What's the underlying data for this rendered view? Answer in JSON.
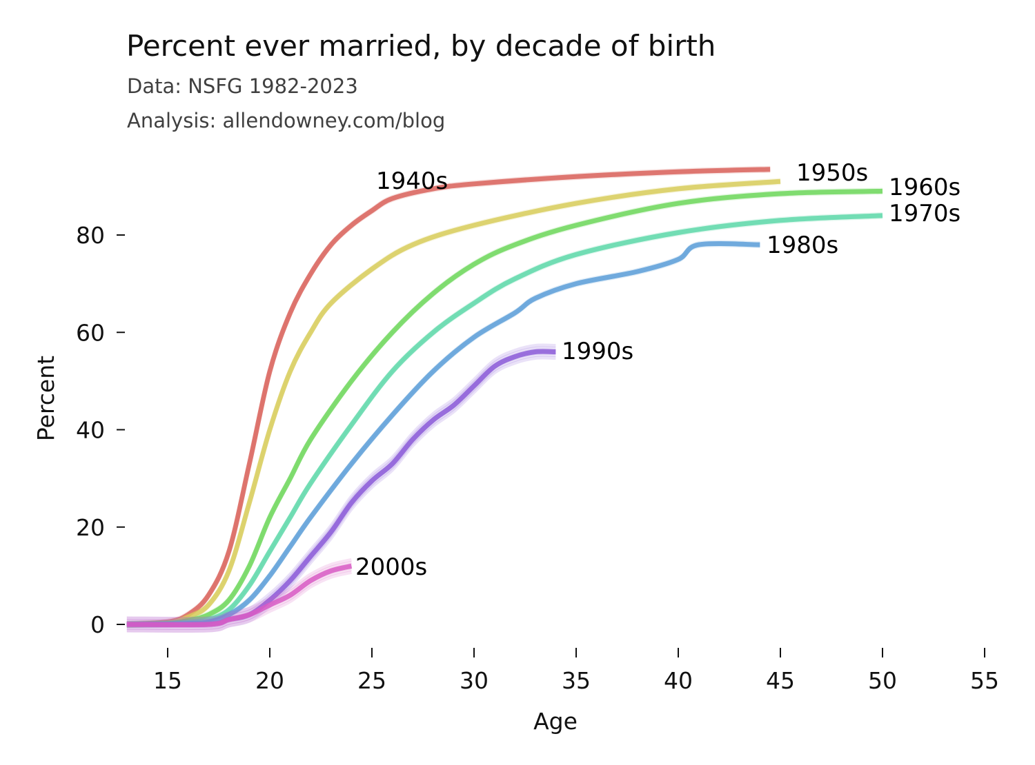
{
  "chart_data": {
    "type": "line",
    "title": "Percent ever married, by decade of birth",
    "subtitle_lines": [
      "Data: NSFG 1982-2023",
      "Analysis: allendowney.com/blog"
    ],
    "xlabel": "Age",
    "ylabel": "Percent",
    "xlim": [
      13,
      56
    ],
    "ylim": [
      -3,
      95
    ],
    "xticks": [
      15,
      20,
      25,
      30,
      35,
      40,
      45,
      50,
      55
    ],
    "yticks": [
      0,
      20,
      40,
      60,
      80
    ],
    "grid": false,
    "legend": "inline labels at line ends",
    "series": [
      {
        "name": "1940s",
        "color": "#d9635c",
        "x": [
          13,
          15,
          16,
          17,
          18,
          19,
          20,
          21,
          22,
          23,
          24,
          25,
          26,
          28,
          30,
          35,
          40,
          44.5
        ],
        "y": [
          0,
          0.5,
          2,
          6,
          15,
          33,
          52,
          64,
          72,
          78,
          82,
          85,
          87.5,
          89.5,
          90.5,
          92,
          93,
          93.5
        ]
      },
      {
        "name": "1950s",
        "color": "#d8cc5c",
        "x": [
          13,
          15,
          16,
          17,
          18,
          19,
          20,
          21,
          22,
          23,
          25,
          27,
          30,
          35,
          40,
          45
        ],
        "y": [
          0,
          0.3,
          1.5,
          4,
          11,
          25,
          40,
          52,
          60,
          66,
          73,
          78,
          82,
          86.5,
          89.5,
          91
        ]
      },
      {
        "name": "1960s",
        "color": "#6fd75c",
        "x": [
          13,
          15,
          16,
          17,
          18,
          19,
          20,
          21,
          22,
          24,
          26,
          28,
          30,
          32,
          35,
          40,
          45,
          50
        ],
        "y": [
          0,
          0.2,
          0.8,
          2,
          5,
          12,
          22,
          30,
          38,
          50,
          60,
          68,
          74,
          78,
          82,
          86.5,
          88.5,
          89
        ]
      },
      {
        "name": "1970s",
        "color": "#5ed8a9",
        "x": [
          13,
          15,
          16,
          17,
          18,
          19,
          20,
          21,
          22,
          24,
          26,
          28,
          30,
          32,
          35,
          40,
          45,
          50
        ],
        "y": [
          0,
          0.1,
          0.4,
          1,
          3,
          8,
          15,
          22,
          29,
          41,
          52,
          60,
          66,
          71,
          76,
          80.5,
          83,
          84
        ]
      },
      {
        "name": "1980s",
        "color": "#5c9ed8",
        "x": [
          13,
          16,
          17,
          18,
          19,
          20,
          21,
          22,
          24,
          26,
          28,
          30,
          32,
          33,
          35,
          38,
          40,
          41,
          44
        ],
        "y": [
          0,
          0.2,
          0.5,
          2,
          5,
          10,
          16,
          22,
          33,
          43,
          52,
          59,
          64,
          67,
          70,
          72.5,
          75,
          78,
          78
        ]
      },
      {
        "name": "1990s",
        "color": "#8c5cd8",
        "x": [
          13,
          17,
          18,
          19,
          20,
          21,
          22,
          23,
          24,
          25,
          26,
          27,
          28,
          29,
          30,
          31,
          32,
          33,
          34
        ],
        "y": [
          0,
          0,
          1,
          2,
          5,
          9,
          14,
          19,
          25,
          29.5,
          33,
          38,
          42,
          45,
          49,
          53,
          55,
          56,
          56
        ]
      },
      {
        "name": "2000s",
        "color": "#d85cc4",
        "x": [
          13,
          17,
          18,
          19,
          20,
          21,
          22,
          23,
          24
        ],
        "y": [
          0,
          0,
          1,
          2,
          4,
          6,
          9,
          11,
          12
        ]
      }
    ],
    "annotations": [
      {
        "text": "1940s",
        "series": "1940s"
      },
      {
        "text": "1950s",
        "series": "1950s"
      },
      {
        "text": "1960s",
        "series": "1960s"
      },
      {
        "text": "1970s",
        "series": "1970s"
      },
      {
        "text": "1980s",
        "series": "1980s"
      },
      {
        "text": "1990s",
        "series": "1990s"
      },
      {
        "text": "2000s",
        "series": "2000s"
      }
    ]
  }
}
